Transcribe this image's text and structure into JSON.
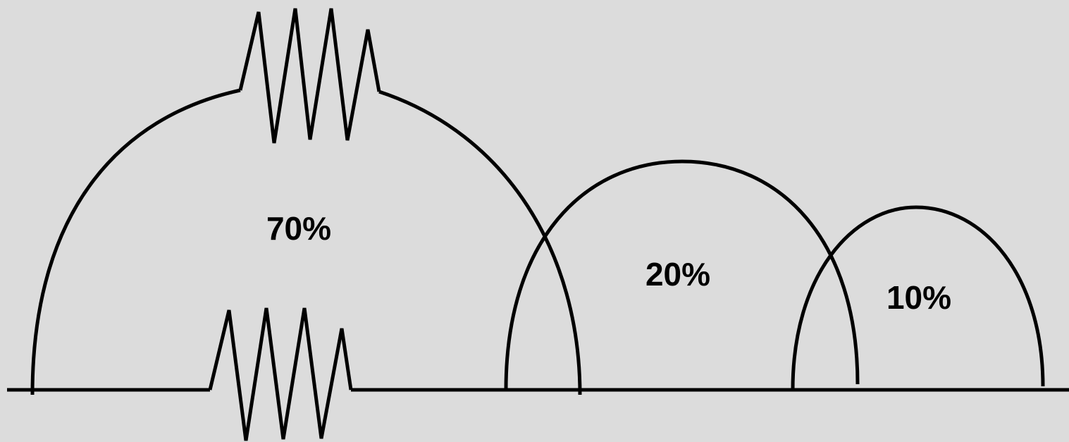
{
  "labels": {
    "large_arc": "70%",
    "medium_arc": "20%",
    "small_arc": "10%"
  },
  "colors": {
    "background": "#dcdcdc",
    "stroke": "#000000"
  }
}
